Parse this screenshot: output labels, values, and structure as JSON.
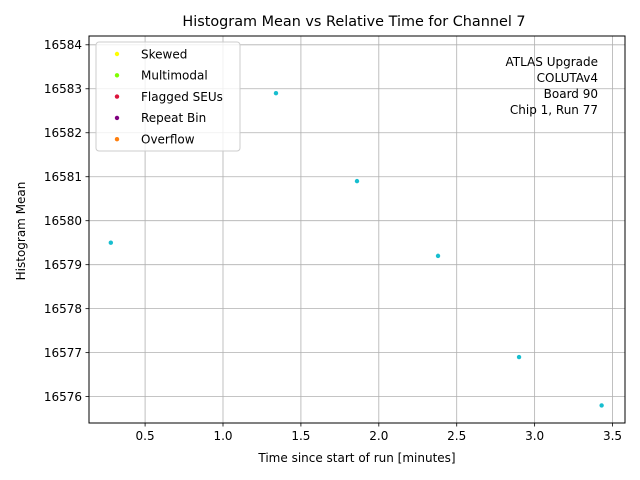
{
  "chart_data": {
    "type": "scatter",
    "title": "Histogram Mean vs Relative Time for Channel 7",
    "xlabel": "Time since start of run [minutes]",
    "ylabel": "Histogram Mean",
    "xlim": [
      0.14,
      3.58
    ],
    "ylim": [
      16575.4,
      16584.2
    ],
    "xticks": [
      0.5,
      1.0,
      1.5,
      2.0,
      2.5,
      3.0,
      3.5
    ],
    "xtick_labels": [
      "0.5",
      "1.0",
      "1.5",
      "2.0",
      "2.5",
      "3.0",
      "3.5"
    ],
    "yticks": [
      16576,
      16577,
      16578,
      16579,
      16580,
      16581,
      16582,
      16583,
      16584
    ],
    "ytick_labels": [
      "16576",
      "16577",
      "16578",
      "16579",
      "16580",
      "16581",
      "16582",
      "16583",
      "16584"
    ],
    "grid": true,
    "legend_position": "top-left",
    "series": [
      {
        "color": "#17becf",
        "x": [
          0.28,
          1.34,
          1.86,
          2.38,
          2.9,
          3.43
        ],
        "y": [
          16579.5,
          16582.9,
          16580.9,
          16579.2,
          16576.9,
          16575.8
        ]
      }
    ],
    "legend": [
      {
        "label": "Skewed",
        "color": "#ffff00"
      },
      {
        "label": "Multimodal",
        "color": "#7fff00"
      },
      {
        "label": "Flagged SEUs",
        "color": "#dc143c"
      },
      {
        "label": "Repeat Bin",
        "color": "#800080"
      },
      {
        "label": "Overflow",
        "color": "#ff7f0e"
      }
    ],
    "annotation": [
      "ATLAS Upgrade",
      "COLUTAv4",
      "Board 90",
      "Chip 1, Run 77"
    ]
  }
}
